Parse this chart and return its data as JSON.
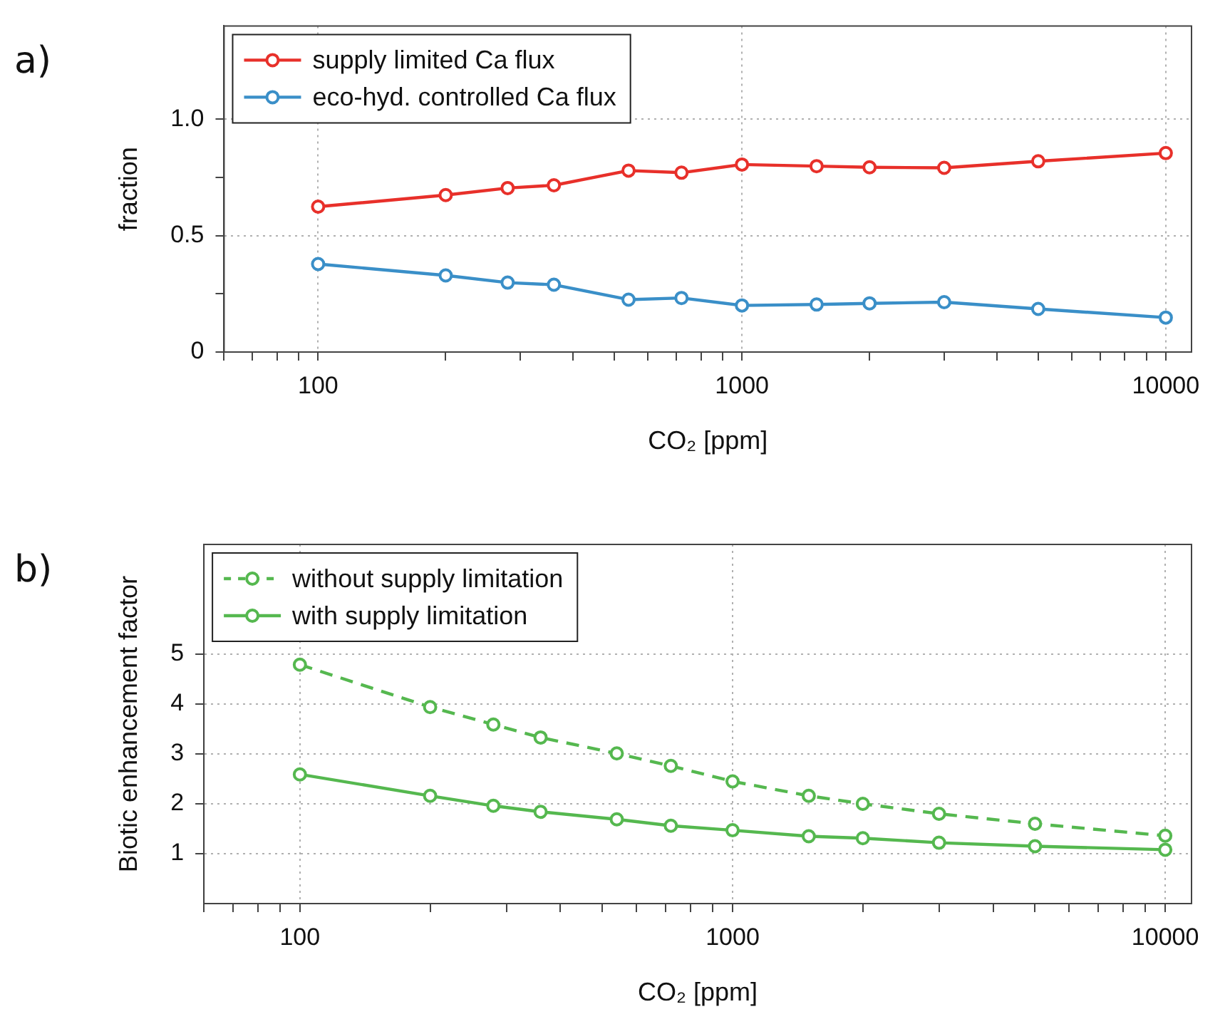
{
  "chart_data": [
    {
      "type": "line",
      "annotations": [
        "a)"
      ],
      "xlabel": "CO₂ [ppm]",
      "ylabel": "fraction",
      "log": "x",
      "grid": true,
      "legend": "top left",
      "marker": "circle",
      "x": [
        100,
        200,
        280,
        360,
        540,
        720,
        1000,
        1500,
        2000,
        3000,
        5000,
        10000
      ],
      "xlim": [
        60,
        11500
      ],
      "xticks": [
        {
          "value": 60,
          "label": null
        },
        {
          "value": 70,
          "label": null
        },
        {
          "value": 80,
          "label": null
        },
        {
          "value": 90,
          "label": null
        },
        100,
        {
          "value": 200,
          "label": null
        },
        {
          "value": 300,
          "label": null
        },
        {
          "value": 400,
          "label": null
        },
        {
          "value": 500,
          "label": null
        },
        {
          "value": 600,
          "label": null
        },
        {
          "value": 700,
          "label": null
        },
        {
          "value": 800,
          "label": null
        },
        {
          "value": 900,
          "label": null
        },
        1000,
        {
          "value": 2000,
          "label": null
        },
        {
          "value": 3000,
          "label": null
        },
        {
          "value": 4000,
          "label": null
        },
        {
          "value": 5000,
          "label": null
        },
        {
          "value": 6000,
          "label": null
        },
        {
          "value": 7000,
          "label": null
        },
        {
          "value": 8000,
          "label": null
        },
        {
          "value": 9000,
          "label": null
        },
        10000
      ],
      "ylim": [
        0,
        1.4
      ],
      "yticks": [
        {
          "value": 0,
          "label": "0"
        },
        {
          "value": 0.25,
          "label": null
        },
        {
          "value": 0.5,
          "label": "0.5"
        },
        {
          "value": 0.75,
          "label": null
        },
        {
          "value": 1,
          "label": "1.0"
        }
      ],
      "series": [
        {
          "name": "supply limited Ca flux",
          "color": "#e8302a",
          "values": [
            0.624,
            0.674,
            0.704,
            0.716,
            0.779,
            0.77,
            0.805,
            0.798,
            0.793,
            0.791,
            0.819,
            0.854
          ]
        },
        {
          "name": "eco-hyd. controlled Ca flux",
          "color": "#3a8fc8",
          "values": [
            0.378,
            0.329,
            0.298,
            0.289,
            0.225,
            0.232,
            0.2,
            0.204,
            0.209,
            0.214,
            0.185,
            0.148
          ]
        }
      ]
    },
    {
      "type": "line",
      "annotations": [
        "b)"
      ],
      "xlabel": "CO₂ [ppm]",
      "ylabel": "Biotic enhancement factor",
      "log": "x",
      "grid": true,
      "legend": "top left",
      "marker": "circle",
      "x": [
        100,
        200,
        280,
        360,
        540,
        720,
        1000,
        1500,
        2000,
        3000,
        5000,
        10000
      ],
      "xlim": [
        60,
        11500
      ],
      "xticks": [
        {
          "value": 60,
          "label": null
        },
        {
          "value": 70,
          "label": null
        },
        {
          "value": 80,
          "label": null
        },
        {
          "value": 90,
          "label": null
        },
        100,
        {
          "value": 200,
          "label": null
        },
        {
          "value": 300,
          "label": null
        },
        {
          "value": 400,
          "label": null
        },
        {
          "value": 500,
          "label": null
        },
        {
          "value": 600,
          "label": null
        },
        {
          "value": 700,
          "label": null
        },
        {
          "value": 800,
          "label": null
        },
        {
          "value": 900,
          "label": null
        },
        1000,
        {
          "value": 2000,
          "label": null
        },
        {
          "value": 3000,
          "label": null
        },
        {
          "value": 4000,
          "label": null
        },
        {
          "value": 5000,
          "label": null
        },
        {
          "value": 6000,
          "label": null
        },
        {
          "value": 7000,
          "label": null
        },
        {
          "value": 8000,
          "label": null
        },
        {
          "value": 9000,
          "label": null
        },
        10000
      ],
      "ylim": [
        0,
        7.2
      ],
      "yticks": [
        1,
        2,
        3,
        4,
        5
      ],
      "series": [
        {
          "name": "without supply limitation",
          "color": "#55b84f",
          "line_style": "dashed",
          "values": [
            4.79,
            3.94,
            3.59,
            3.33,
            3.01,
            2.76,
            2.45,
            2.16,
            2.0,
            1.8,
            1.6,
            1.36
          ]
        },
        {
          "name": "with supply limitation",
          "color": "#55b84f",
          "line_style": "solid",
          "values": [
            2.59,
            2.16,
            1.96,
            1.84,
            1.69,
            1.56,
            1.47,
            1.35,
            1.31,
            1.22,
            1.15,
            1.08
          ]
        }
      ]
    }
  ]
}
